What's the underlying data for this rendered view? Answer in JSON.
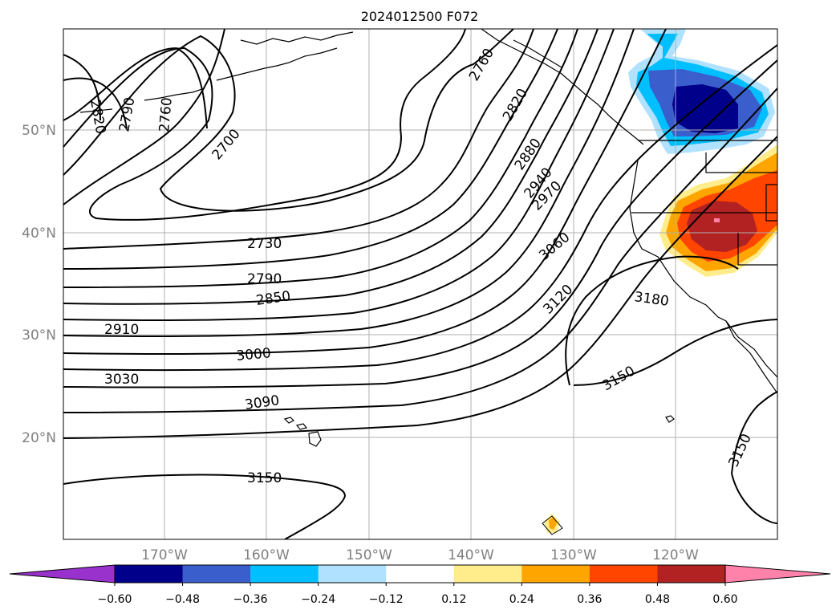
{
  "title": "2024012500 F072",
  "lat_labels": [
    "50°N",
    "40°N",
    "30°N",
    "20°N"
  ],
  "lon_labels": [
    "170°W",
    "160°W",
    "150°W",
    "140°W",
    "130°W",
    "120°W"
  ],
  "colorbar": {
    "colors": [
      "#9932cc",
      "#00008b",
      "#3a5fcd",
      "#00bfff",
      "#b0e2ff",
      "#ffffff",
      "#ffec8b",
      "#ffa500",
      "#ff4500",
      "#b22222",
      "#ff82ab"
    ],
    "tick_labels": [
      "−0.60",
      "−0.48",
      "−0.36",
      "−0.24",
      "−0.12",
      "0.12",
      "0.24",
      "0.36",
      "0.48",
      "0.60"
    ]
  },
  "contour_labels": [
    "2820",
    "2790",
    "2760",
    "2700",
    "2760",
    "2820",
    "2880",
    "2940",
    "2970",
    "2730",
    "2790",
    "2850",
    "2910",
    "3000",
    "3030",
    "3090",
    "3060",
    "3120",
    "3180",
    "3150",
    "3150",
    "3150"
  ]
}
